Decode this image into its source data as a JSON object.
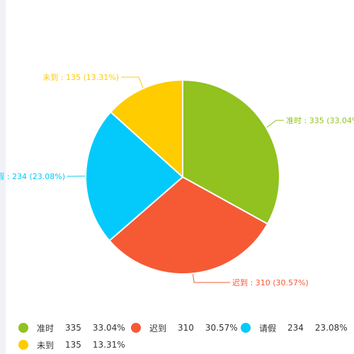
{
  "chart_data": {
    "type": "pie",
    "title": "",
    "slices": [
      {
        "name": "准时",
        "value": 335,
        "percent": "33.04%",
        "color": "#91c21f"
      },
      {
        "name": "迟到",
        "value": 310,
        "percent": "30.57%",
        "color": "#f55a35"
      },
      {
        "name": "请假",
        "value": 234,
        "percent": "23.08%",
        "color": "#03cafb"
      },
      {
        "name": "未到",
        "value": 135,
        "percent": "13.31%",
        "color": "#ffcc00"
      }
    ],
    "label_format": "{name} : {value} ({percent})",
    "legend_placement": "bottom"
  }
}
